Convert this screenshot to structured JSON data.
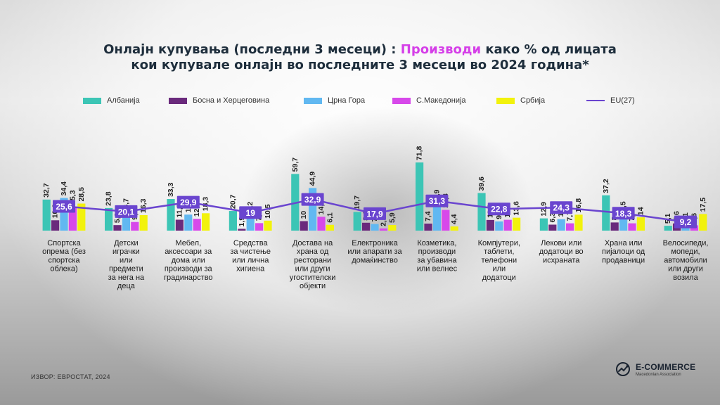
{
  "title": {
    "line1_part1": "Онлајн купувања (последни 3 месеци) : ",
    "line1_highlight": "Производи",
    "line1_part2": " како % од лицата",
    "line2": "кои купувале онлајн во последните 3 месеци во 2024 година*"
  },
  "source": "ИЗВОР: ЕВРОСТАТ, 2024",
  "logo": {
    "name": "E-COMMERCE",
    "subtitle": "Macedonian Association"
  },
  "chart_data": {
    "type": "bar",
    "categories": [
      [
        "Спортска",
        "опрема (без",
        "спортска",
        "облека)"
      ],
      [
        "Детски",
        "играчки",
        "или",
        "предмети",
        "за нега на",
        "деца"
      ],
      [
        "Мебел,",
        "аксесоари за",
        "дома или",
        "производи за",
        "градинарство"
      ],
      [
        "Средства",
        "за чистење",
        "или лична",
        "хигиена"
      ],
      [
        "Достава на",
        "храна од",
        "ресторани",
        "или други",
        "угостителски",
        "објекти"
      ],
      [
        "Електроника",
        "или апарати за",
        "домаќинство"
      ],
      [
        "Козметика,",
        "производи",
        "за убавина",
        "или велнес"
      ],
      [
        "Компјутери,",
        "таблети,",
        "телефони",
        "или",
        "додатоци"
      ],
      [
        "Лекови или",
        "додатоци во",
        "исхраната"
      ],
      [
        "Храна или",
        "пијалоци од",
        "продавници"
      ],
      [
        "Велосипеди,",
        "мопеди,",
        "автомобили",
        "или други",
        "возила"
      ]
    ],
    "series": [
      {
        "name": "Албанија",
        "color": "#3cc5b5",
        "values": [
          32.7,
          23.8,
          33.3,
          20.7,
          59.7,
          19.7,
          71.8,
          39.6,
          12.9,
          37.2,
          5.1
        ]
      },
      {
        "name": "Босна и Херцеговина",
        "color": "#6a2a7c",
        "values": [
          10.9,
          5.8,
          11.5,
          1.9,
          10,
          8.3,
          7.4,
          11.2,
          6.3,
          8.6,
          7.6
        ]
      },
      {
        "name": "Црна Гора",
        "color": "#61b8f1",
        "values": [
          34.4,
          16.7,
          16.9,
          13.2,
          44.9,
          7,
          25.9,
          9.7,
          12.1,
          13.5,
          6.1
        ]
      },
      {
        "name": "С.Македонија",
        "color": "#d749ea",
        "values": [
          25.3,
          9.1,
          12.4,
          7.9,
          14.6,
          2.3,
          21.8,
          11.4,
          7.7,
          7.7,
          5.6
        ]
      },
      {
        "name": "Србија",
        "color": "#f2f20c",
        "values": [
          28.5,
          16.3,
          18.3,
          10.5,
          6.1,
          5.9,
          4.4,
          13.6,
          16.8,
          14,
          17.5
        ]
      }
    ],
    "eu": {
      "name": "EU(27)",
      "color": "#6a45cf",
      "values": [
        25.6,
        20.1,
        29.9,
        19,
        32.9,
        17.9,
        31.3,
        22.8,
        24.3,
        18.3,
        9.2
      ]
    },
    "value_format": "comma-decimal"
  }
}
